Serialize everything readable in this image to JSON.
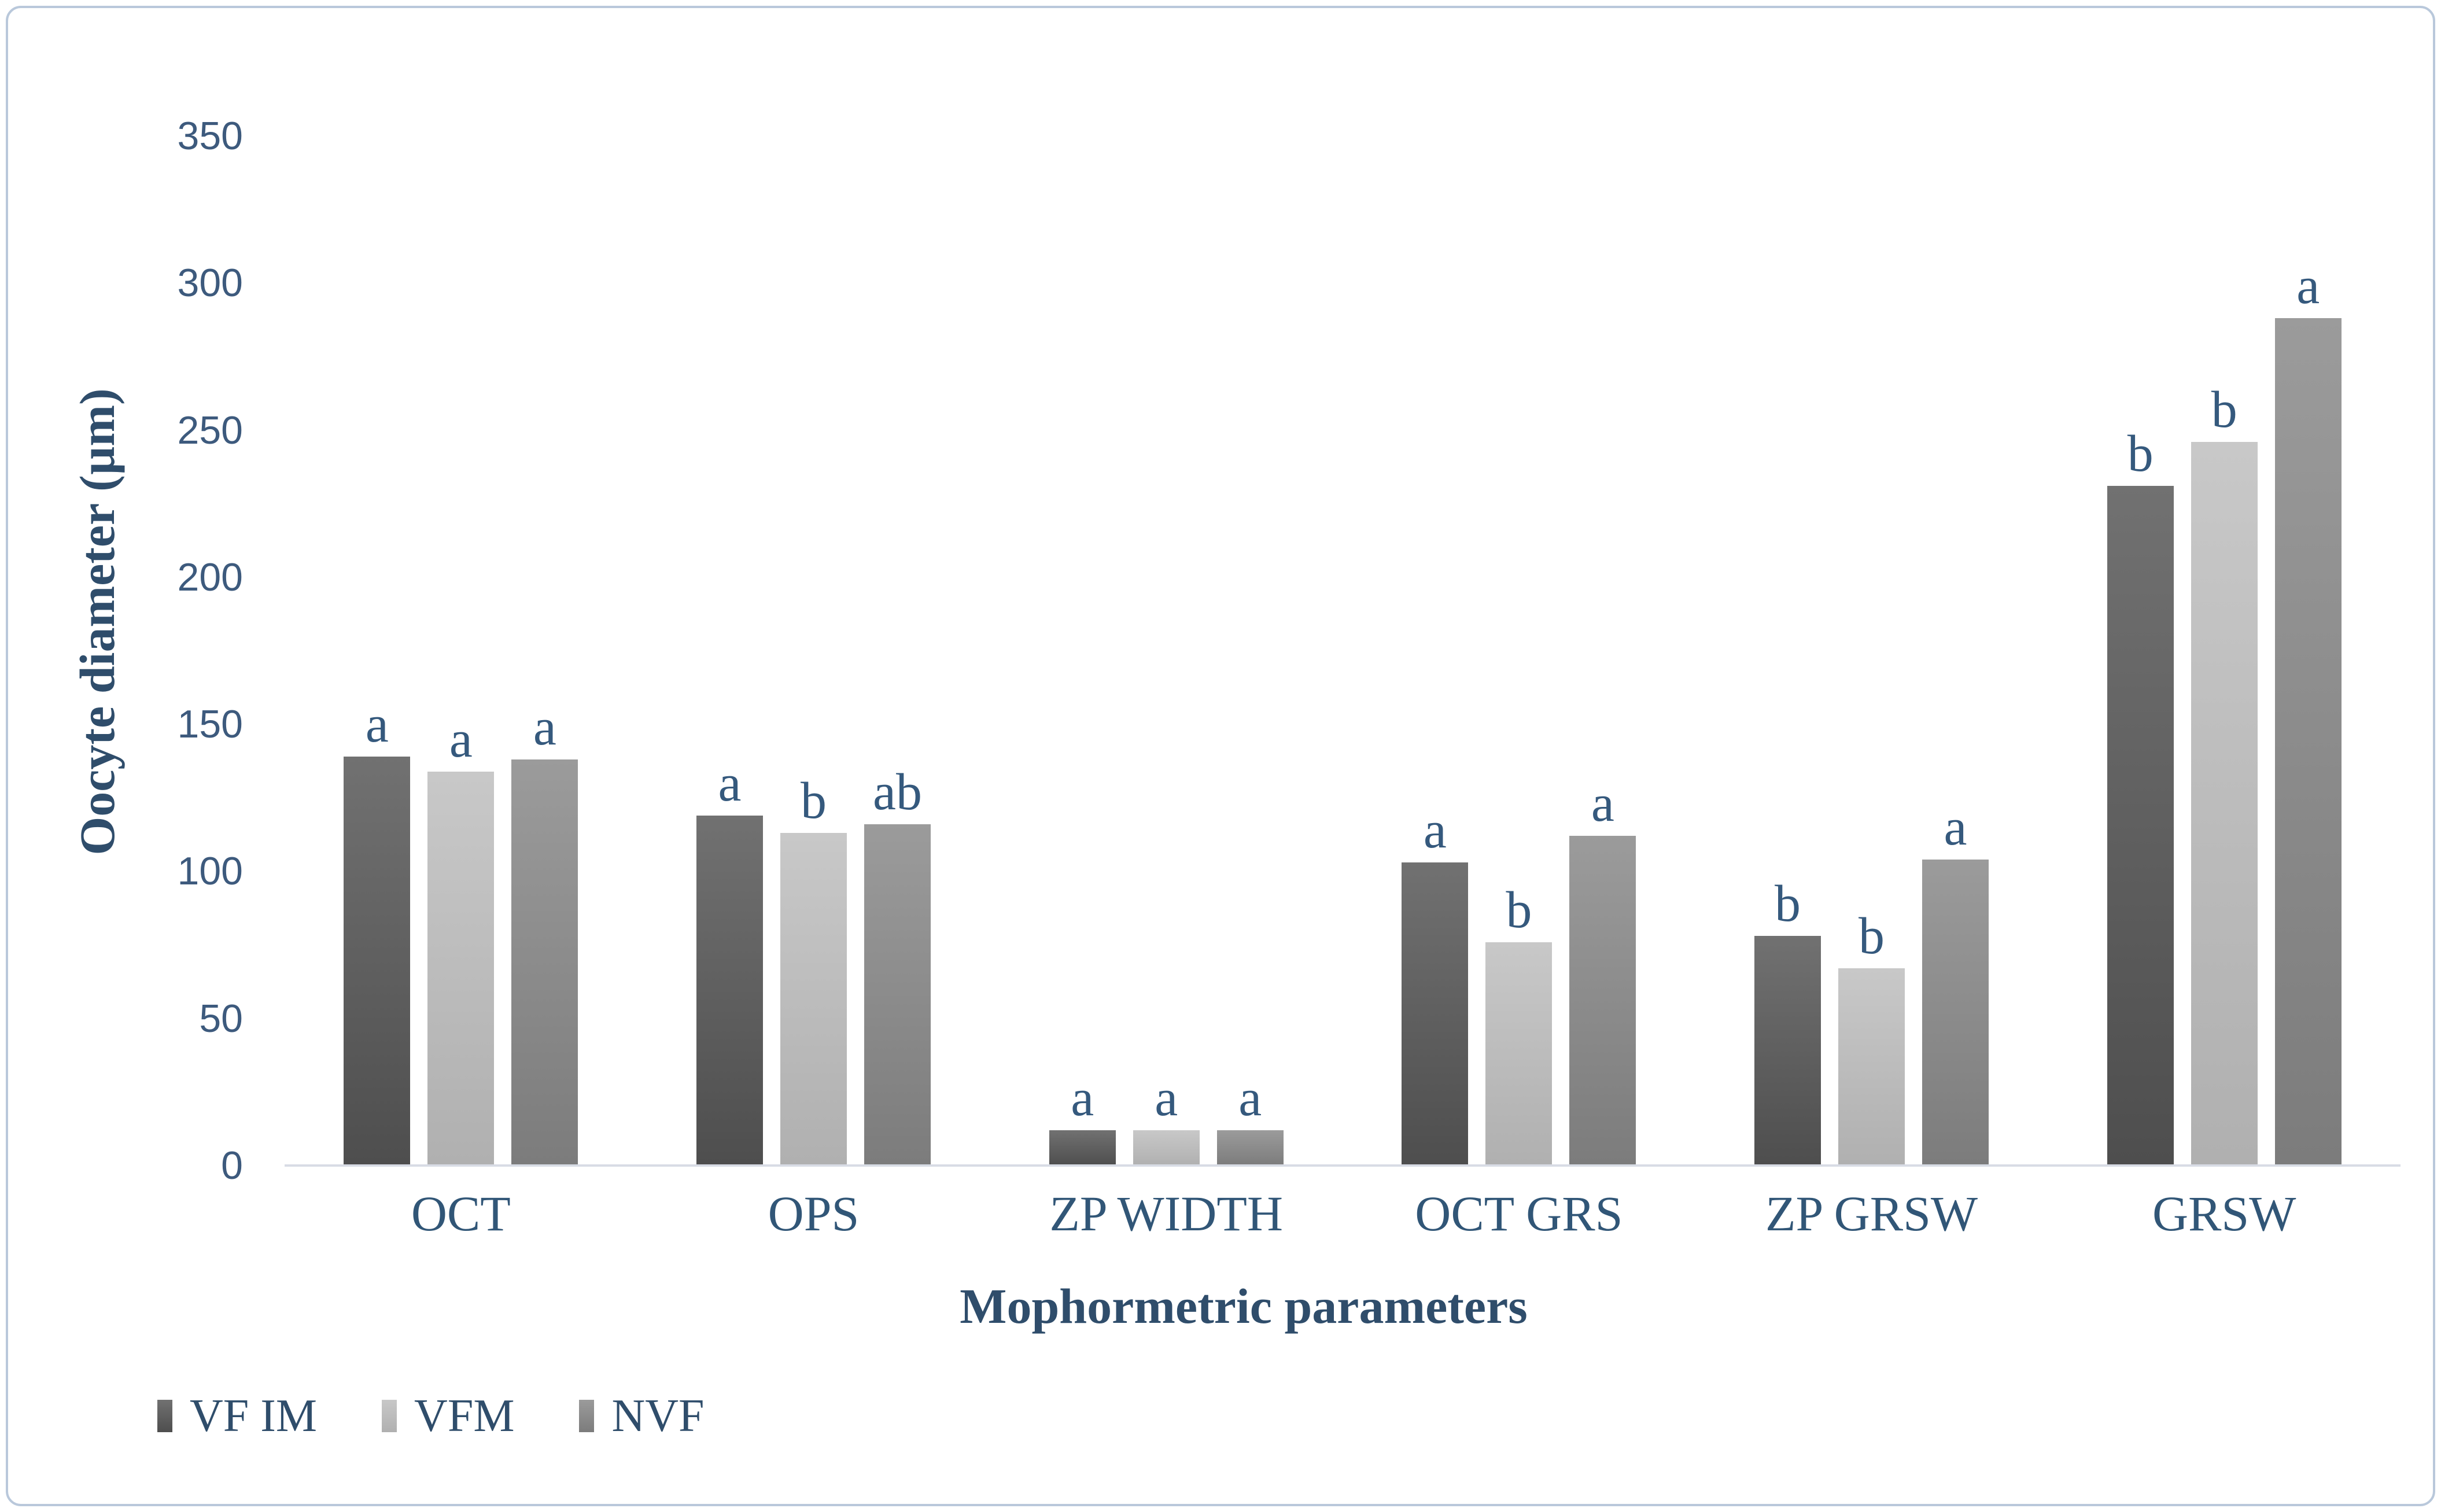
{
  "chart_data": {
    "type": "bar",
    "title": "",
    "xlabel": "Mophormetric parameters",
    "ylabel": "Oocyte diameter (µm)",
    "ylim": [
      0,
      350
    ],
    "ytick_step": 50,
    "yticks": [
      0,
      50,
      100,
      150,
      200,
      250,
      300,
      350
    ],
    "grid": false,
    "legend_position": "bottom-left",
    "categories": [
      "OCT",
      "OPS",
      "ZP WIDTH",
      "OCT GRS",
      "ZP GRSW",
      "GRSW"
    ],
    "series": [
      {
        "name": "VF IM",
        "color_top": "#717171",
        "color_bottom": "#4e4e4e",
        "values": [
          139,
          119,
          12,
          103,
          78,
          231
        ],
        "letters": [
          "a",
          "a",
          "a",
          "a",
          "b",
          "b"
        ]
      },
      {
        "name": "VFM",
        "color_top": "#c8c8c8",
        "color_bottom": "#b0b0b0",
        "values": [
          134,
          113,
          12,
          76,
          67,
          246
        ],
        "letters": [
          "a",
          "b",
          "a",
          "b",
          "b",
          "b"
        ]
      },
      {
        "name": "NVF",
        "color_top": "#9b9b9b",
        "color_bottom": "#7c7c7c",
        "values": [
          138,
          116,
          12,
          112,
          104,
          288
        ],
        "letters": [
          "a",
          "ab",
          "a",
          "a",
          "a",
          "a"
        ]
      }
    ],
    "colors": {
      "axis_text": "#3d5a7d",
      "letter_text": "#35597d",
      "category_text": "#315677",
      "title_text": "#2f4d6b",
      "axis_line": "#d8dce5",
      "border": "#b9c8db"
    }
  }
}
